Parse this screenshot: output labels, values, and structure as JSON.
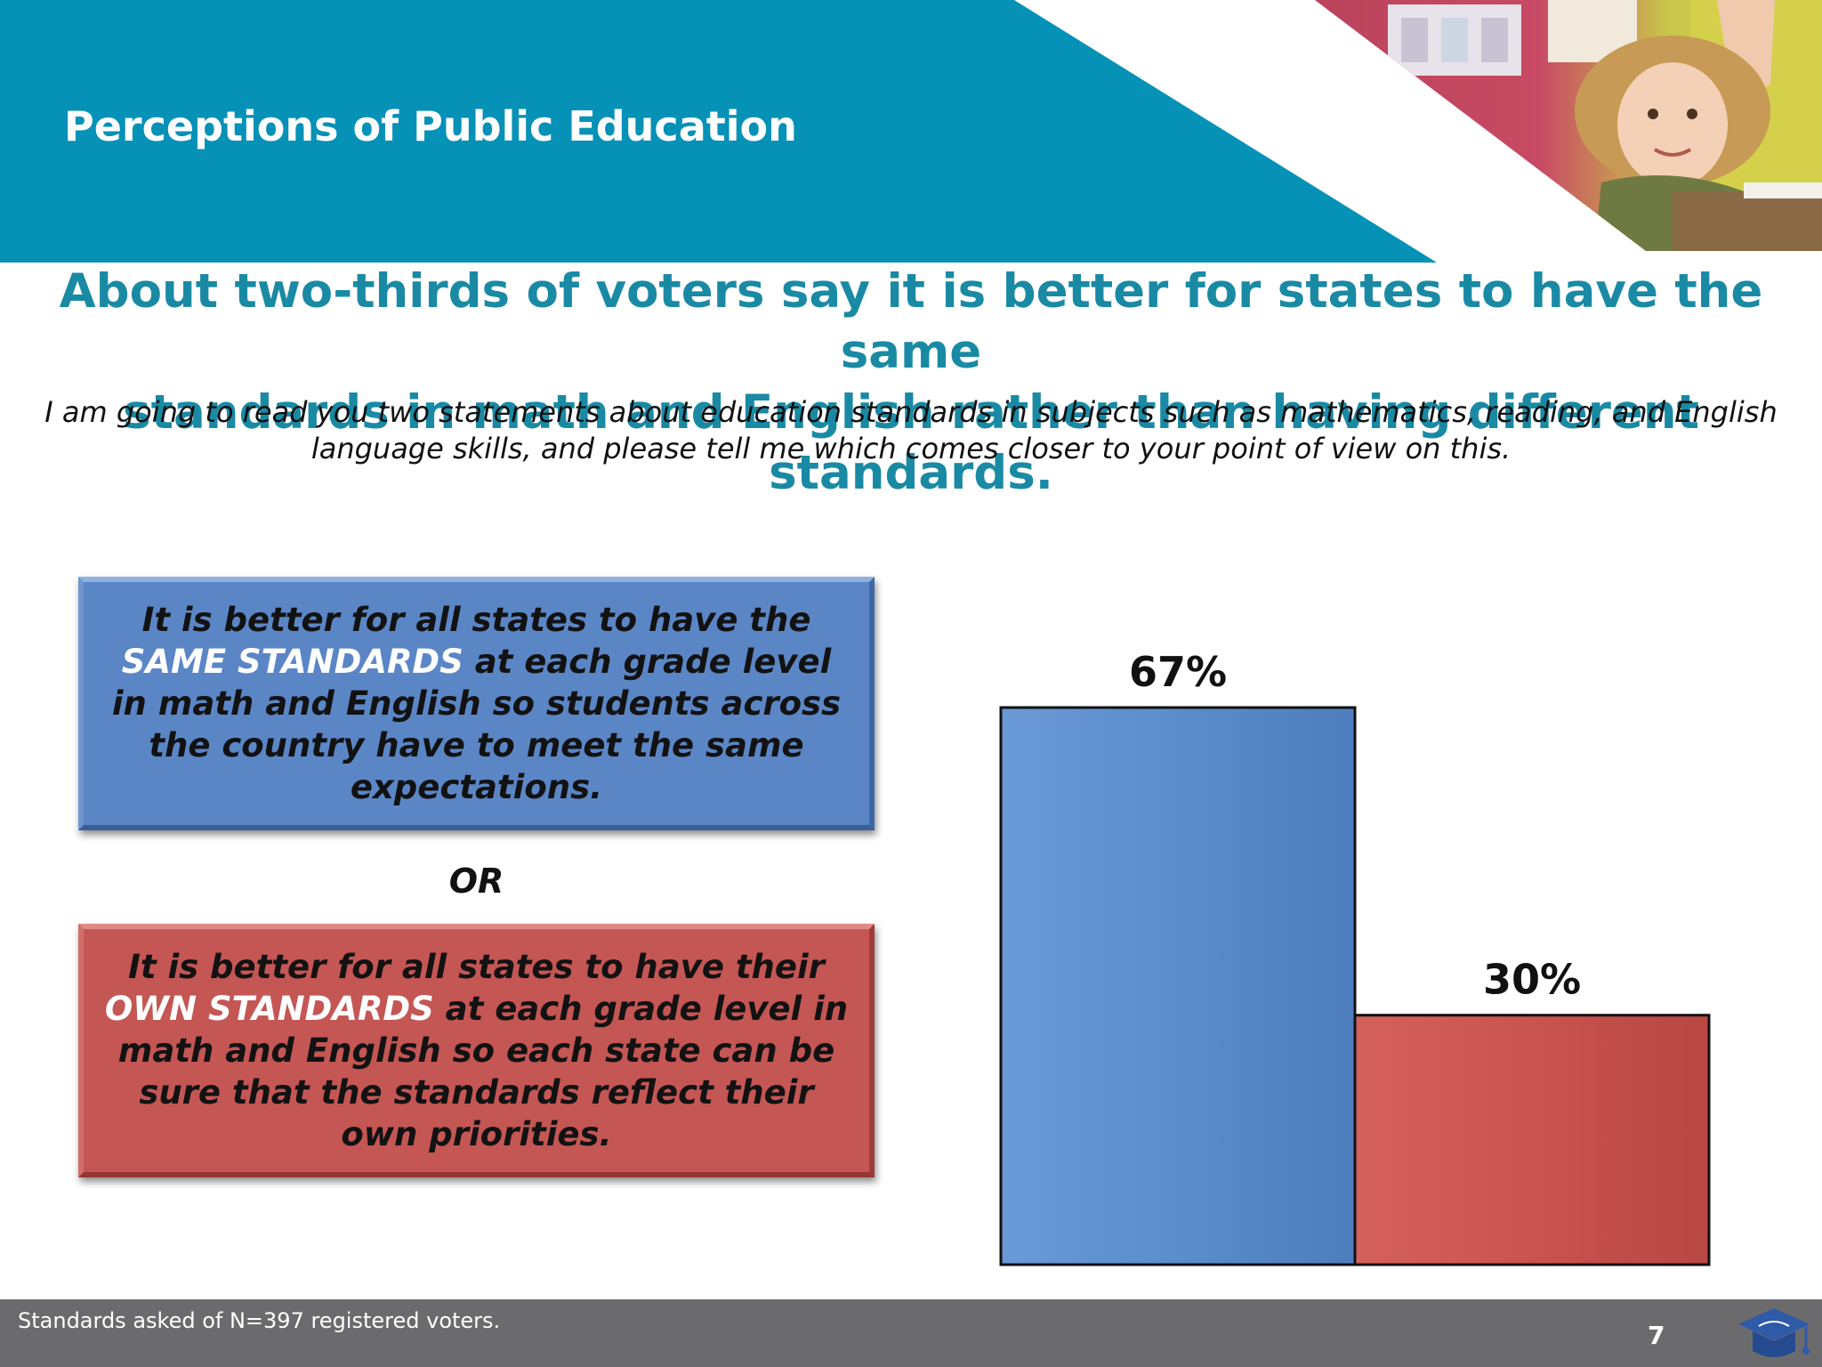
{
  "header": {
    "section_title": "Perceptions of Public Education"
  },
  "headline": {
    "line1": "About two-thirds of voters say it is better for states to have the same",
    "line2": "standards in math and English rather than having different standards."
  },
  "question": {
    "line1": "I am going to read you two statements about education standards in subjects such as mathematics, reading, and English",
    "line2": "language skills, and please tell me which comes closer to your point of view on this."
  },
  "statements": {
    "same": {
      "pre": "It is better for all states to have the",
      "highlight": "SAME STANDARDS",
      "post": "at each grade level in math and English so students across the country have to meet the same expectations."
    },
    "or_label": "OR",
    "own": {
      "pre": "It is better for all states to have their",
      "highlight": "OWN STANDARDS",
      "post": "at each grade level in math and English so each state can be sure that the standards reflect their own priorities."
    }
  },
  "chart_data": {
    "type": "bar",
    "categories": [
      "It is better for all states to have the SAME STANDARDS",
      "It is better for all states to have their OWN STANDARDS"
    ],
    "values": [
      67,
      30
    ],
    "data_labels": [
      "67%",
      "30%"
    ],
    "colors": [
      "#5b8ccc",
      "#c9534f"
    ],
    "ylim": [
      0,
      100
    ],
    "grid": false,
    "legend": "none"
  },
  "footer": {
    "footnote": "Standards asked of N=397 registered voters.",
    "page_number": "7"
  },
  "colors": {
    "header_teal": "#0691b7",
    "headline_teal": "#1a8aa4",
    "same_blue": "#5b86c6",
    "own_red": "#c45654",
    "footer_gray": "#6b6b6d"
  },
  "icons": {
    "photo": "classroom-photo",
    "logo": "graduation-cap-logo-icon"
  }
}
